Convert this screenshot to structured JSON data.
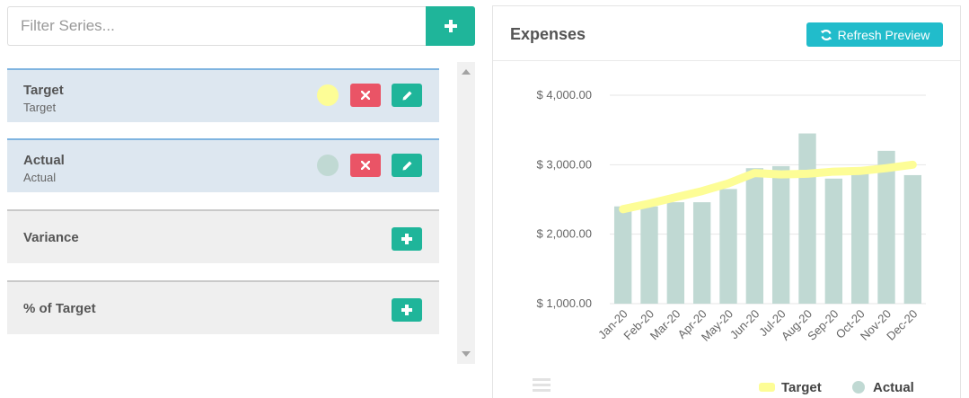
{
  "filter": {
    "placeholder": "Filter Series..."
  },
  "series": [
    {
      "name": "Target",
      "subtitle": "Target",
      "color": "#fdfd96",
      "state": "added"
    },
    {
      "name": "Actual",
      "subtitle": "Actual",
      "color": "#c0d9d3",
      "state": "added"
    },
    {
      "name": "Variance",
      "state": "available"
    },
    {
      "name": "% of Target",
      "state": "available"
    }
  ],
  "preview": {
    "title": "Expenses",
    "refresh_label": "Refresh Preview"
  },
  "chart_data": {
    "type": "bar",
    "categories": [
      "Jan-20",
      "Feb-20",
      "Mar-20",
      "Apr-20",
      "May-20",
      "Jun-20",
      "Jul-20",
      "Aug-20",
      "Sep-20",
      "Oct-20",
      "Nov-20",
      "Dec-20"
    ],
    "series": [
      {
        "name": "Target",
        "type": "line",
        "color": "#fdfd96",
        "values": [
          2360,
          2440,
          2530,
          2620,
          2730,
          2880,
          2860,
          2870,
          2900,
          2910,
          2950,
          3000
        ]
      },
      {
        "name": "Actual",
        "type": "bar",
        "color": "#c0d9d3",
        "values": [
          2400,
          2400,
          2460,
          2460,
          2650,
          2950,
          2980,
          3450,
          2800,
          2870,
          3200,
          2850
        ]
      }
    ],
    "yticks": [
      "$ 4,000.00",
      "$ 3,000.00",
      "$ 2,000.00",
      "$ 1,000.00"
    ],
    "ytick_values": [
      4000,
      3000,
      2000,
      1000
    ],
    "ylim": [
      1000,
      4000
    ],
    "grid": true,
    "legend_position": "bottom-right"
  }
}
